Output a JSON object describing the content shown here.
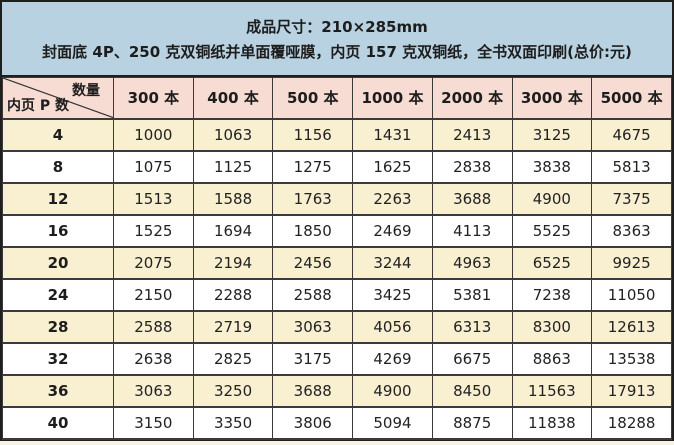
{
  "colors": {
    "header_bg": "#b9d2e1",
    "column_header_bg": "#f6dcd2",
    "row_alt_bg": "#f9efd1",
    "row_bg": "#ffffff",
    "border_dark": "#1f1f1f",
    "border_inner": "#3a3a3a",
    "text": "#1d1d1d"
  },
  "header": {
    "line1": "成品尺寸：210×285mm",
    "line2": "封面底 4P、250 克双铜纸并单面覆哑膜，内页 157 克双铜纸，全书双面印刷(总价:元)"
  },
  "table": {
    "corner": {
      "top_label": "数量",
      "bottom_label": "内页 P 数"
    },
    "columns": [
      "300 本",
      "400 本",
      "500 本",
      "1000 本",
      "2000 本",
      "3000 本",
      "5000 本"
    ],
    "rows": [
      {
        "pages": "4",
        "values": [
          "1000",
          "1063",
          "1156",
          "1431",
          "2413",
          "3125",
          "4675"
        ]
      },
      {
        "pages": "8",
        "values": [
          "1075",
          "1125",
          "1275",
          "1625",
          "2838",
          "3838",
          "5813"
        ]
      },
      {
        "pages": "12",
        "values": [
          "1513",
          "1588",
          "1763",
          "2263",
          "3688",
          "4900",
          "7375"
        ]
      },
      {
        "pages": "16",
        "values": [
          "1525",
          "1694",
          "1850",
          "2469",
          "4113",
          "5525",
          "8363"
        ]
      },
      {
        "pages": "20",
        "values": [
          "2075",
          "2194",
          "2456",
          "3244",
          "4963",
          "6525",
          "9925"
        ]
      },
      {
        "pages": "24",
        "values": [
          "2150",
          "2288",
          "2588",
          "3425",
          "5381",
          "7238",
          "11050"
        ]
      },
      {
        "pages": "28",
        "values": [
          "2588",
          "2719",
          "3063",
          "4056",
          "6313",
          "8300",
          "12613"
        ]
      },
      {
        "pages": "32",
        "values": [
          "2638",
          "2825",
          "3175",
          "4269",
          "6675",
          "8863",
          "13538"
        ]
      },
      {
        "pages": "36",
        "values": [
          "3063",
          "3250",
          "3688",
          "4900",
          "8450",
          "11563",
          "17913"
        ]
      },
      {
        "pages": "40",
        "values": [
          "3150",
          "3350",
          "3806",
          "5094",
          "8875",
          "11838",
          "18288"
        ]
      }
    ]
  }
}
